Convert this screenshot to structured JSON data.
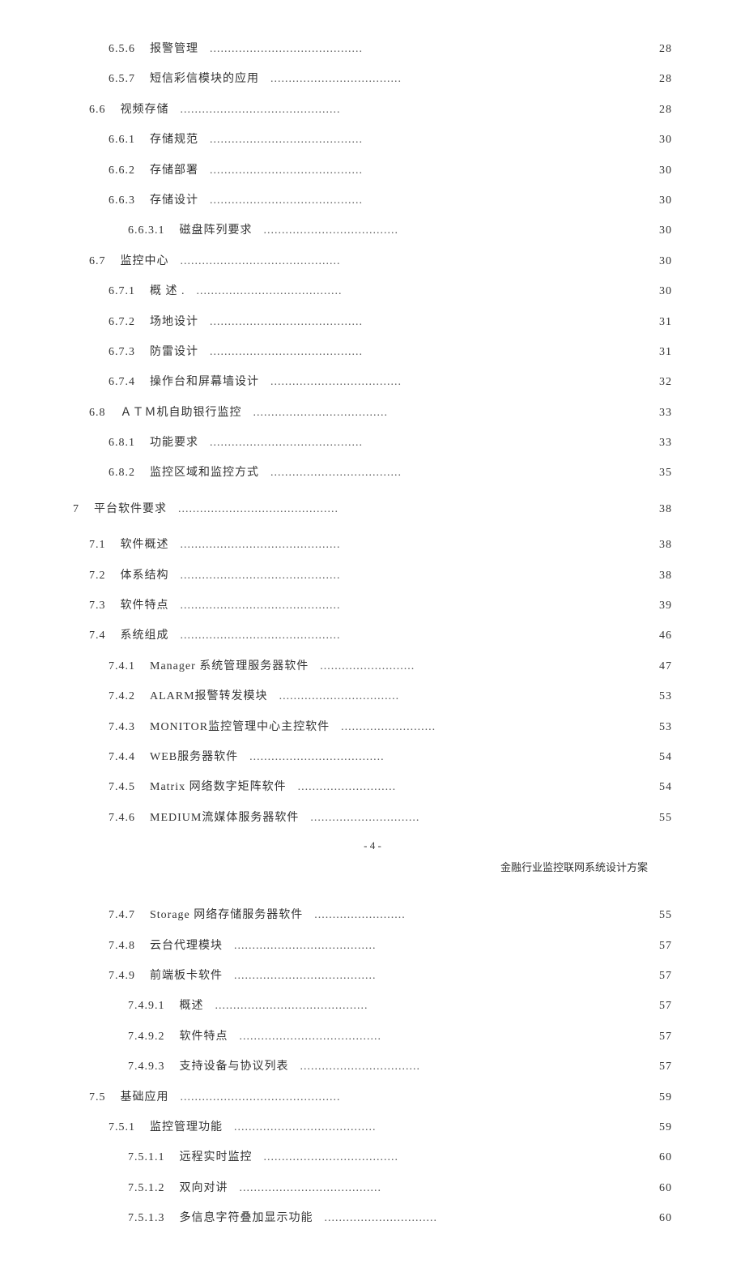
{
  "dots": "............................................................",
  "footer": "- 4 -",
  "header2": "金融行业监控联网系统设计方案",
  "toc": [
    {
      "indent": 2,
      "num": "6.5.6",
      "title": "报警管理",
      "page": "28"
    },
    {
      "indent": 2,
      "num": "6.5.7",
      "title": "短信彩信模块的应用",
      "page": "28"
    },
    {
      "indent": 1,
      "num": "6.6",
      "title": "视频存储",
      "page": "28"
    },
    {
      "indent": 2,
      "num": "6.6.1",
      "title": "存储规范",
      "page": "30"
    },
    {
      "indent": 2,
      "num": "6.6.2",
      "title": "存储部署",
      "page": "30"
    },
    {
      "indent": 2,
      "num": "6.6.3",
      "title": "存储设计",
      "page": "30"
    },
    {
      "indent": 3,
      "num": "6.6.3.1",
      "title": "磁盘阵列要求",
      "page": "30"
    },
    {
      "indent": 1,
      "num": "6.7",
      "title": "监控中心",
      "page": "30"
    },
    {
      "indent": 2,
      "num": "6.7.1",
      "title": "概 述 .",
      "page": "30"
    },
    {
      "indent": 2,
      "num": "6.7.2",
      "title": "场地设计",
      "page": "31"
    },
    {
      "indent": 2,
      "num": "6.7.3",
      "title": "防雷设计",
      "page": "31"
    },
    {
      "indent": 2,
      "num": "6.7.4",
      "title": "操作台和屏幕墙设计",
      "page": "32"
    },
    {
      "indent": 1,
      "num": "6.8",
      "title": "ＡＴＭ机自助银行监控",
      "page": "33"
    },
    {
      "indent": 2,
      "num": "6.8.1",
      "title": "功能要求",
      "page": "33"
    },
    {
      "indent": 2,
      "num": "6.8.2",
      "title": "监控区域和监控方式",
      "page": "35"
    },
    {
      "indent": 0,
      "num": "7",
      "title": "平台软件要求",
      "page": "38",
      "gapBefore": true
    },
    {
      "indent": 1,
      "num": "7.1",
      "title": "软件概述",
      "page": "38",
      "gapBefore": true
    },
    {
      "indent": 1,
      "num": "7.2",
      "title": "体系结构",
      "page": "38"
    },
    {
      "indent": 1,
      "num": "7.3",
      "title": "软件特点",
      "page": "39"
    },
    {
      "indent": 1,
      "num": "7.4",
      "title": "系统组成",
      "page": "46"
    },
    {
      "indent": 2,
      "num": "7.4.1",
      "title": "Manager 系统管理服务器软件",
      "page": "47"
    },
    {
      "indent": 2,
      "num": "7.4.2",
      "title": "ALARM报警转发模块",
      "page": "53"
    },
    {
      "indent": 2,
      "num": "7.4.3",
      "title": "MONITOR监控管理中心主控软件",
      "page": "53"
    },
    {
      "indent": 2,
      "num": "7.4.4",
      "title": "WEB服务器软件",
      "page": "54"
    },
    {
      "indent": 2,
      "num": "7.4.5",
      "title": "Matrix  网络数字矩阵软件",
      "page": "54"
    },
    {
      "indent": 2,
      "num": "7.4.6",
      "title": "MEDIUM流媒体服务器软件",
      "page": "55"
    }
  ],
  "toc2": [
    {
      "indent": 2,
      "num": "7.4.7",
      "title": "Storage  网络存储服务器软件",
      "page": "55"
    },
    {
      "indent": 2,
      "num": "7.4.8",
      "title": "云台代理模块",
      "page": "57"
    },
    {
      "indent": 2,
      "num": "7.4.9",
      "title": "前端板卡软件",
      "page": "57"
    },
    {
      "indent": 3,
      "num": "7.4.9.1",
      "title": "概述",
      "page": "57"
    },
    {
      "indent": 3,
      "num": "7.4.9.2",
      "title": "软件特点",
      "page": "57"
    },
    {
      "indent": 3,
      "num": "7.4.9.3",
      "title": "支持设备与协议列表",
      "page": "57"
    },
    {
      "indent": 1,
      "num": "7.5",
      "title": "基础应用",
      "page": "59"
    },
    {
      "indent": 2,
      "num": "7.5.1",
      "title": "监控管理功能",
      "page": "59"
    },
    {
      "indent": 3,
      "num": "7.5.1.1",
      "title": "远程实时监控",
      "page": "60"
    },
    {
      "indent": 3,
      "num": "7.5.1.2",
      "title": "双向对讲",
      "page": "60"
    },
    {
      "indent": 3,
      "num": "7.5.1.3",
      "title": "多信息字符叠加显示功能",
      "page": "60"
    }
  ]
}
